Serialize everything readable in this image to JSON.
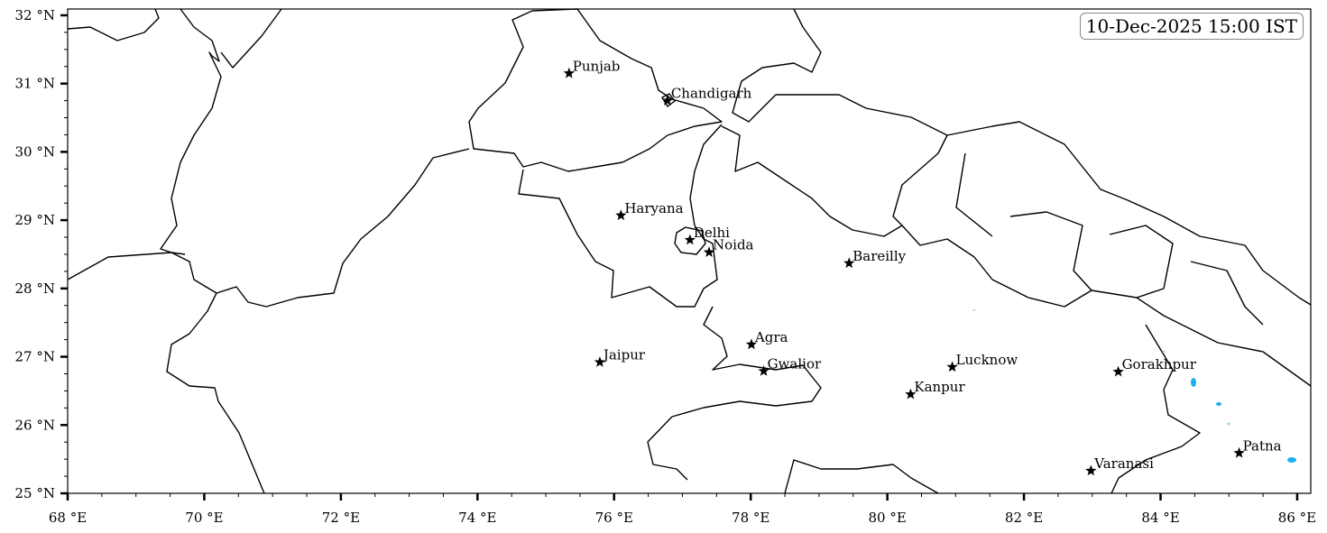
{
  "map": {
    "timestamp": "10-Dec-2025 15:00 IST",
    "extent": {
      "lon": [
        68,
        86.2
      ],
      "lat": [
        25,
        32.1
      ]
    },
    "lon_ticks": [
      {
        "value": 68,
        "label": "68 °E"
      },
      {
        "value": 70,
        "label": "70 °E"
      },
      {
        "value": 72,
        "label": "72 °E"
      },
      {
        "value": 74,
        "label": "74 °E"
      },
      {
        "value": 76,
        "label": "76 °E"
      },
      {
        "value": 78,
        "label": "78 °E"
      },
      {
        "value": 80,
        "label": "80 °E"
      },
      {
        "value": 82,
        "label": "82 °E"
      },
      {
        "value": 84,
        "label": "84 °E"
      },
      {
        "value": 86,
        "label": "86 °E"
      }
    ],
    "lat_ticks": [
      {
        "value": 25,
        "label": "25 °N"
      },
      {
        "value": 26,
        "label": "26 °N"
      },
      {
        "value": 27,
        "label": "27 °N"
      },
      {
        "value": 28,
        "label": "28 °N"
      },
      {
        "value": 29,
        "label": "29 °N"
      },
      {
        "value": 30,
        "label": "30 °N"
      },
      {
        "value": 31,
        "label": "31 °N"
      },
      {
        "value": 32,
        "label": "32 °N"
      }
    ],
    "cities": [
      {
        "name": "Punjab",
        "lon": 75.34,
        "lat": 31.15
      },
      {
        "name": "Chandigarh",
        "lon": 76.78,
        "lat": 30.75
      },
      {
        "name": "Haryana",
        "lon": 76.1,
        "lat": 29.07
      },
      {
        "name": "Delhi",
        "lon": 77.11,
        "lat": 28.71
      },
      {
        "name": "Noida",
        "lon": 77.39,
        "lat": 28.53
      },
      {
        "name": "Bareilly",
        "lon": 79.44,
        "lat": 28.37
      },
      {
        "name": "Agra",
        "lon": 78.01,
        "lat": 27.18
      },
      {
        "name": "Jaipur",
        "lon": 75.79,
        "lat": 26.92
      },
      {
        "name": "Gwalior",
        "lon": 78.19,
        "lat": 26.79
      },
      {
        "name": "Lucknow",
        "lon": 80.95,
        "lat": 26.85
      },
      {
        "name": "Kanpur",
        "lon": 80.34,
        "lat": 26.45
      },
      {
        "name": "Gorakhpur",
        "lon": 83.38,
        "lat": 26.78
      },
      {
        "name": "Varanasi",
        "lon": 82.98,
        "lat": 25.33
      },
      {
        "name": "Patna",
        "lon": 85.15,
        "lat": 25.59
      }
    ],
    "colors": {
      "boundary": "#000000",
      "precip_light": "#a6dcef",
      "precip": "#1ab0f0"
    }
  }
}
